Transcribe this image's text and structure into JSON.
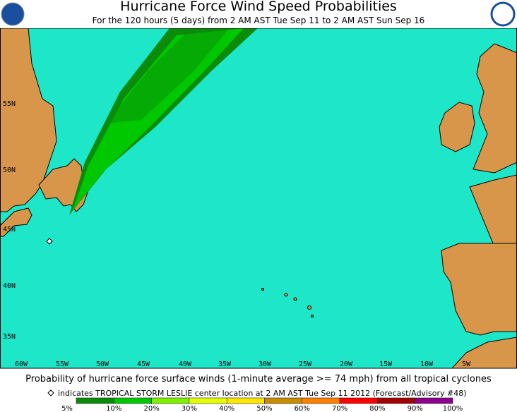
{
  "header": {
    "title": "Hurricane Force Wind Speed Probabilities",
    "subtitle": "For the 120 hours (5 days) from 2 AM AST Tue Sep 11 to 2 AM AST Sun Sep 16"
  },
  "map": {
    "lat_labels": [
      "55N",
      "50N",
      "45N",
      "40N",
      "35N"
    ],
    "lon_labels": [
      "60W",
      "55W",
      "50W",
      "45W",
      "40W",
      "35W",
      "30W",
      "25W",
      "20W",
      "15W",
      "10W",
      "5W"
    ]
  },
  "footer": {
    "caption": "Probability of hurricane force surface winds (1-minute average >= 74 mph) from all tropical cyclones",
    "storm_note": "indicates TROPICAL STORM LESLIE center location at 2 AM AST Tue Sep 11 2012 (Forecast/Advisory #48)",
    "scale_labels": [
      "5%",
      "10%",
      "20%",
      "30%",
      "40%",
      "50%",
      "60%",
      "70%",
      "80%",
      "90%",
      "100%"
    ],
    "scale_colors": [
      "#0a8c0a",
      "#00c800",
      "#80f000",
      "#e6ff00",
      "#ffe600",
      "#c88c00",
      "#ff8000",
      "#ff0000",
      "#a00000",
      "#8c008c"
    ]
  }
}
